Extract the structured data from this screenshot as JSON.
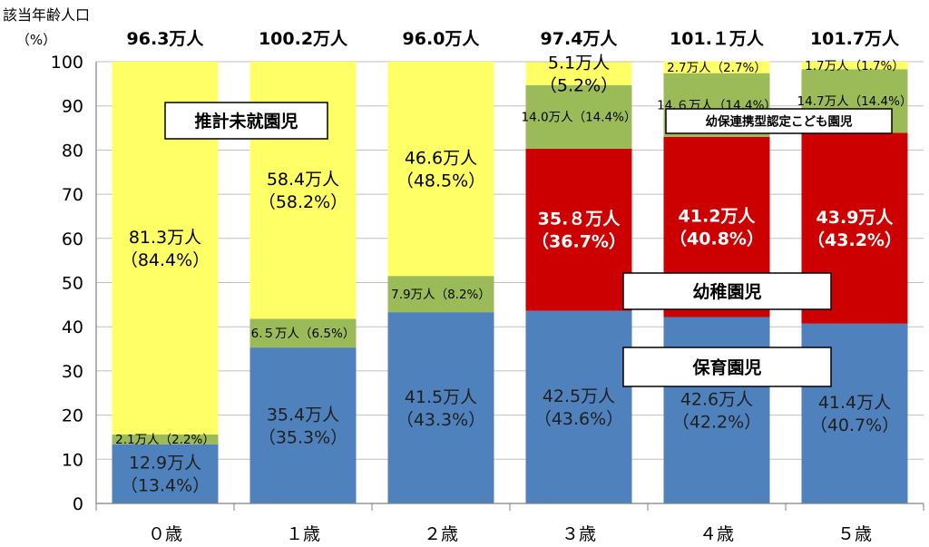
{
  "chart_data": {
    "type": "bar",
    "stacked": true,
    "y_axis_label": "該当年齢人口",
    "y_axis_unit": "（%）",
    "ylim": [
      0,
      100
    ],
    "yticks": [
      0,
      10,
      20,
      30,
      40,
      50,
      60,
      70,
      80,
      90,
      100
    ],
    "categories": [
      "０歳",
      "１歳",
      "２歳",
      "３歳",
      "４歳",
      "５歳"
    ],
    "totals": [
      "96.3万人",
      "100.2万人",
      "96.0万人",
      "97.4万人",
      "101.１万人",
      "101.7万人"
    ],
    "series": [
      {
        "name": "保育園児",
        "color": "#4f81bd",
        "values": [
          13.4,
          35.3,
          43.3,
          43.6,
          42.2,
          40.7
        ],
        "labels": [
          [
            "12.9万人",
            "（13.4%）"
          ],
          [
            "35.4万人",
            "（35.3%）"
          ],
          [
            "41.5万人",
            "（43.3%）"
          ],
          [
            "42.5万人",
            "（43.6%）"
          ],
          [
            "42.6万人",
            "（42.2%）"
          ],
          [
            "41.4万人",
            "（40.7%）"
          ]
        ],
        "label_color": "#1f1f1f"
      },
      {
        "name": "",
        "color": "#9bbb59",
        "values": [
          2.2,
          6.5,
          8.2,
          0,
          0,
          0
        ],
        "labels": [
          [
            "2.1万人（2.2%）"
          ],
          [
            "6.５万人（6.5%）"
          ],
          [
            "7.9万人（8.2%）"
          ],
          [],
          [],
          []
        ],
        "label_color": "#000000"
      },
      {
        "name": "幼稚園児",
        "color": "#cc0000",
        "values": [
          0,
          0,
          0,
          36.7,
          40.8,
          43.2
        ],
        "labels": [
          [],
          [],
          [],
          [
            "35.８万人",
            "（36.7%）"
          ],
          [
            "41.2万人",
            "（40.8%）"
          ],
          [
            "43.9万人",
            "（43.2%）"
          ]
        ],
        "label_color": "#ffffff"
      },
      {
        "name": "幼保連携型認定こども園児",
        "color": "#9bbb59",
        "values": [
          0,
          0,
          0,
          14.4,
          14.4,
          14.4
        ],
        "labels": [
          [],
          [],
          [],
          [
            "14.0万人（14.4%）"
          ],
          [
            "14.６万人（14.4%）"
          ],
          [
            "14.7万人（14.4%）"
          ]
        ],
        "label_color": "#000000"
      },
      {
        "name": "推計未就園児",
        "color": "#ffff66",
        "values": [
          84.4,
          58.2,
          48.5,
          5.2,
          2.7,
          1.7
        ],
        "labels": [
          [
            "81.3万人",
            "（84.4%）"
          ],
          [
            "58.4万人",
            "（58.2%）"
          ],
          [
            "46.6万人",
            "（48.5%）"
          ],
          [
            "5.1万人",
            "（5.2%）"
          ],
          [
            "2.7万人（2.7%）"
          ],
          [
            "1.7万人（1.7%）"
          ]
        ],
        "label_color": "#000000"
      }
    ],
    "callouts": {
      "unenrolled": "推計未就園児",
      "kindergarten": "幼稚園児",
      "nursery": "保育園児",
      "certified": "幼保連携型認定こども園児"
    }
  }
}
